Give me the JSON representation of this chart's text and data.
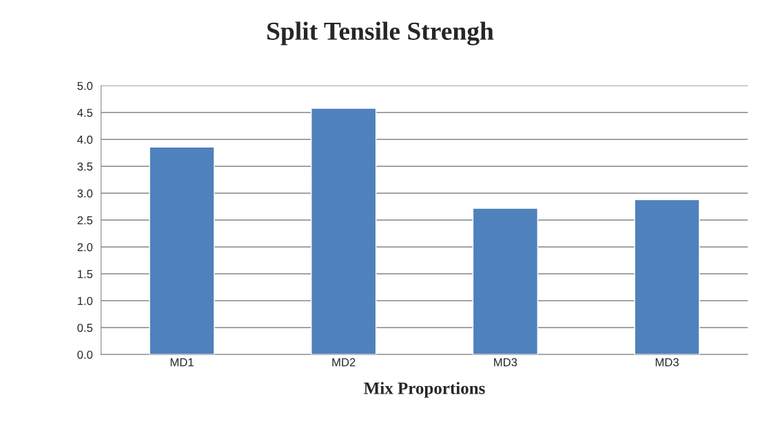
{
  "chart_data": {
    "type": "bar",
    "title": "Split Tensile Strengh",
    "xlabel": "Mix Proportions",
    "categories": [
      "MD1",
      "MD2",
      "MD3",
      "MD3"
    ],
    "values": [
      3.86,
      4.58,
      2.72,
      2.88
    ],
    "color": "#4f81bd",
    "ylim": [
      0,
      5
    ],
    "yticks": [
      {
        "value": 0,
        "label": "0.0"
      },
      {
        "value": 0.5,
        "label": "0.5"
      },
      {
        "value": 1,
        "label": "1.0"
      },
      {
        "value": 1.5,
        "label": "1.5"
      },
      {
        "value": 2,
        "label": "2.0"
      },
      {
        "value": 2.5,
        "label": "2.5"
      },
      {
        "value": 3,
        "label": "3.0"
      },
      {
        "value": 3.5,
        "label": "3.5"
      },
      {
        "value": 4,
        "label": "4.0"
      },
      {
        "value": 4.5,
        "label": "4.5"
      },
      {
        "value": 5,
        "label": "5.0"
      }
    ],
    "grid": "y"
  }
}
